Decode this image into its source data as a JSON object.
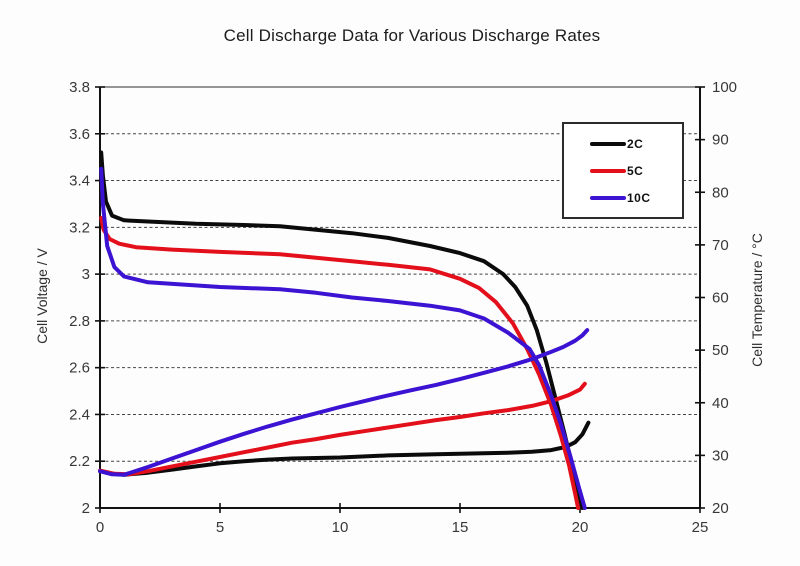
{
  "chart_data": {
    "type": "line",
    "title": "Cell Discharge Data for Various Discharge Rates",
    "grid": "horizontal-dashed",
    "x_axis": {
      "label": "",
      "min": 0,
      "max": 25,
      "ticks": [
        {
          "value": 0,
          "label": "0"
        },
        {
          "value": 5,
          "label": "5"
        },
        {
          "value": 10,
          "label": "10"
        },
        {
          "value": 15,
          "label": "15"
        },
        {
          "value": 20,
          "label": "20"
        },
        {
          "value": 25,
          "label": "25"
        }
      ]
    },
    "y_left": {
      "label": "Cell Voltage / V",
      "min": 2,
      "max": 3.8,
      "ticks": [
        {
          "value": 3.8,
          "label": "3.8"
        },
        {
          "value": 3.6,
          "label": "3.6"
        },
        {
          "value": 3.4,
          "label": "3.4"
        },
        {
          "value": 3.2,
          "label": "3.2"
        },
        {
          "value": 3,
          "label": "3"
        },
        {
          "value": 2.8,
          "label": "2.8"
        },
        {
          "value": 2.6,
          "label": "2.6"
        },
        {
          "value": 2.4,
          "label": "2.4"
        },
        {
          "value": 2.2,
          "label": "2.2"
        },
        {
          "value": 2,
          "label": "2"
        }
      ],
      "gridline_values": [
        3.6,
        3.4,
        3.2,
        3.0,
        2.8,
        2.6,
        2.4,
        2.2
      ]
    },
    "y_right": {
      "label": "Cell Temperature / °C",
      "min": 20,
      "max": 100,
      "ticks": [
        {
          "value": 100,
          "label": "100"
        },
        {
          "value": 90,
          "label": "90"
        },
        {
          "value": 80,
          "label": "80"
        },
        {
          "value": 70,
          "label": "70"
        },
        {
          "value": 60,
          "label": "60"
        },
        {
          "value": 50,
          "label": "50"
        },
        {
          "value": 40,
          "label": "40"
        },
        {
          "value": 30,
          "label": "30"
        },
        {
          "value": 20,
          "label": "20"
        }
      ]
    },
    "legend": {
      "position": "top-right",
      "entries": [
        {
          "id": "2c",
          "label": "2C",
          "color": "#0b0b0b"
        },
        {
          "id": "5c",
          "label": "5C",
          "color": "#e3101b"
        },
        {
          "id": "10c",
          "label": "10C",
          "color": "#3c13d2"
        }
      ]
    },
    "series": [
      {
        "name": "2C voltage",
        "axis": "left",
        "color": "#0b0b0b",
        "points": [
          [
            0.05,
            3.52
          ],
          [
            0.12,
            3.42
          ],
          [
            0.25,
            3.31
          ],
          [
            0.5,
            3.25
          ],
          [
            1,
            3.23
          ],
          [
            2,
            3.225
          ],
          [
            4,
            3.215
          ],
          [
            6,
            3.21
          ],
          [
            7.5,
            3.205
          ],
          [
            9,
            3.19
          ],
          [
            10.5,
            3.175
          ],
          [
            12,
            3.155
          ],
          [
            13.75,
            3.12
          ],
          [
            15,
            3.09
          ],
          [
            16,
            3.055
          ],
          [
            16.8,
            3.0
          ],
          [
            17.3,
            2.945
          ],
          [
            17.8,
            2.865
          ],
          [
            18.2,
            2.76
          ],
          [
            18.6,
            2.62
          ],
          [
            19.0,
            2.46
          ],
          [
            19.35,
            2.32
          ],
          [
            19.7,
            2.17
          ],
          [
            19.95,
            2.06
          ],
          [
            20.1,
            2.0
          ]
        ]
      },
      {
        "name": "2C temperature",
        "axis": "right",
        "color": "#0b0b0b",
        "points": [
          [
            0,
            27.0
          ],
          [
            0.5,
            26.5
          ],
          [
            1,
            26.3
          ],
          [
            2,
            26.7
          ],
          [
            3,
            27.3
          ],
          [
            4,
            27.9
          ],
          [
            5,
            28.5
          ],
          [
            6,
            28.9
          ],
          [
            7,
            29.2
          ],
          [
            8,
            29.4
          ],
          [
            10,
            29.6
          ],
          [
            12,
            30.0
          ],
          [
            14,
            30.2
          ],
          [
            16,
            30.4
          ],
          [
            17,
            30.5
          ],
          [
            18,
            30.7
          ],
          [
            18.8,
            31.0
          ],
          [
            19.4,
            31.6
          ],
          [
            19.8,
            32.5
          ],
          [
            20.1,
            34.0
          ],
          [
            20.35,
            36.2
          ]
        ]
      },
      {
        "name": "5C voltage",
        "axis": "left",
        "color": "#e3101b",
        "points": [
          [
            0.05,
            3.24
          ],
          [
            0.15,
            3.19
          ],
          [
            0.4,
            3.15
          ],
          [
            0.8,
            3.13
          ],
          [
            1.5,
            3.115
          ],
          [
            3,
            3.105
          ],
          [
            5,
            3.095
          ],
          [
            7.5,
            3.085
          ],
          [
            9,
            3.07
          ],
          [
            10.5,
            3.055
          ],
          [
            12,
            3.04
          ],
          [
            13.75,
            3.02
          ],
          [
            15,
            2.98
          ],
          [
            15.8,
            2.94
          ],
          [
            16.5,
            2.88
          ],
          [
            17.2,
            2.79
          ],
          [
            17.8,
            2.68
          ],
          [
            18.3,
            2.57
          ],
          [
            18.8,
            2.44
          ],
          [
            19.2,
            2.31
          ],
          [
            19.55,
            2.18
          ],
          [
            19.8,
            2.06
          ],
          [
            19.92,
            2.0
          ]
        ]
      },
      {
        "name": "5C temperature",
        "axis": "right",
        "color": "#e3101b",
        "points": [
          [
            0,
            27.1
          ],
          [
            0.6,
            26.5
          ],
          [
            1.2,
            26.4
          ],
          [
            2,
            27.0
          ],
          [
            3,
            27.9
          ],
          [
            4,
            28.8
          ],
          [
            5,
            29.7
          ],
          [
            6,
            30.6
          ],
          [
            7,
            31.5
          ],
          [
            8,
            32.4
          ],
          [
            9,
            33.1
          ],
          [
            10,
            33.9
          ],
          [
            11,
            34.6
          ],
          [
            12,
            35.3
          ],
          [
            13,
            36.0
          ],
          [
            14,
            36.7
          ],
          [
            15,
            37.3
          ],
          [
            16,
            38.0
          ],
          [
            17,
            38.6
          ],
          [
            18,
            39.4
          ],
          [
            18.8,
            40.3
          ],
          [
            19.5,
            41.4
          ],
          [
            20.0,
            42.5
          ],
          [
            20.2,
            43.6
          ]
        ]
      },
      {
        "name": "10C voltage",
        "axis": "left",
        "color": "#3c13d2",
        "points": [
          [
            0.05,
            3.45
          ],
          [
            0.12,
            3.3
          ],
          [
            0.3,
            3.12
          ],
          [
            0.6,
            3.03
          ],
          [
            1,
            2.99
          ],
          [
            2,
            2.965
          ],
          [
            3.5,
            2.955
          ],
          [
            5,
            2.945
          ],
          [
            7.5,
            2.935
          ],
          [
            9,
            2.92
          ],
          [
            10.5,
            2.9
          ],
          [
            12,
            2.885
          ],
          [
            13.75,
            2.865
          ],
          [
            15,
            2.845
          ],
          [
            16,
            2.81
          ],
          [
            17,
            2.75
          ],
          [
            17.9,
            2.68
          ],
          [
            18.3,
            2.61
          ],
          [
            18.8,
            2.48
          ],
          [
            19.2,
            2.36
          ],
          [
            19.6,
            2.22
          ],
          [
            19.95,
            2.09
          ],
          [
            20.2,
            2.0
          ]
        ]
      },
      {
        "name": "10C temperature",
        "axis": "right",
        "color": "#3c13d2",
        "points": [
          [
            0,
            27.0
          ],
          [
            0.5,
            26.4
          ],
          [
            1,
            26.3
          ],
          [
            2,
            27.8
          ],
          [
            3,
            29.4
          ],
          [
            4,
            31.0
          ],
          [
            5,
            32.6
          ],
          [
            6,
            34.1
          ],
          [
            7,
            35.5
          ],
          [
            8,
            36.8
          ],
          [
            9,
            38.0
          ],
          [
            10,
            39.2
          ],
          [
            11,
            40.3
          ],
          [
            12,
            41.4
          ],
          [
            13,
            42.4
          ],
          [
            14,
            43.4
          ],
          [
            15,
            44.5
          ],
          [
            16,
            45.7
          ],
          [
            17,
            46.9
          ],
          [
            18,
            48.3
          ],
          [
            18.7,
            49.5
          ],
          [
            19.3,
            50.6
          ],
          [
            19.8,
            51.8
          ],
          [
            20.1,
            52.8
          ],
          [
            20.3,
            53.8
          ]
        ]
      }
    ]
  }
}
